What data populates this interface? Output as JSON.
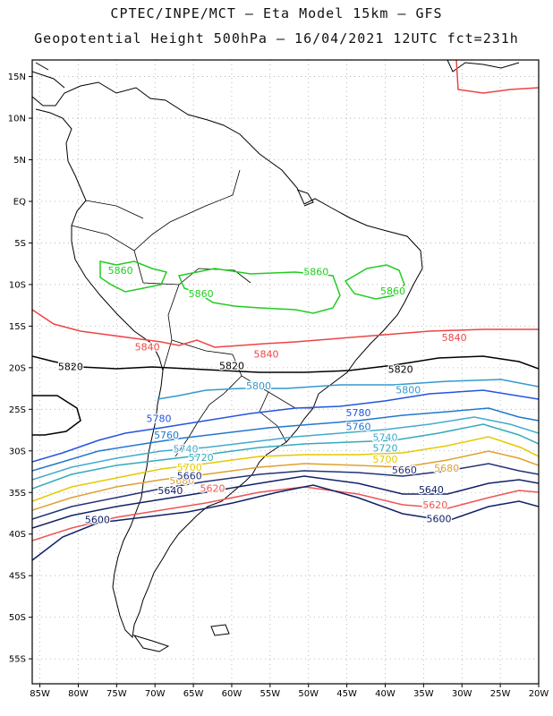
{
  "header": {
    "line1": "CPTEC/INPE/MCT –  Eta Model 15km – GFS",
    "line2": "Geopotential Height 500hPa – 16/04/2021 12UTC fct=231h"
  },
  "map": {
    "lon_range": [
      -86,
      -20
    ],
    "lat_range": [
      -58,
      17
    ],
    "lat_ticks": [
      {
        "v": 15,
        "label": "15N"
      },
      {
        "v": 10,
        "label": "10N"
      },
      {
        "v": 5,
        "label": "5N"
      },
      {
        "v": 0,
        "label": "EQ"
      },
      {
        "v": -5,
        "label": "5S"
      },
      {
        "v": -10,
        "label": "10S"
      },
      {
        "v": -15,
        "label": "15S"
      },
      {
        "v": -20,
        "label": "20S"
      },
      {
        "v": -25,
        "label": "25S"
      },
      {
        "v": -30,
        "label": "30S"
      },
      {
        "v": -35,
        "label": "35S"
      },
      {
        "v": -40,
        "label": "40S"
      },
      {
        "v": -45,
        "label": "45S"
      },
      {
        "v": -50,
        "label": "50S"
      },
      {
        "v": -55,
        "label": "55S"
      }
    ],
    "lon_ticks": [
      {
        "v": -85,
        "label": "85W"
      },
      {
        "v": -80,
        "label": "80W"
      },
      {
        "v": -75,
        "label": "75W"
      },
      {
        "v": -70,
        "label": "70W"
      },
      {
        "v": -65,
        "label": "65W"
      },
      {
        "v": -60,
        "label": "60W"
      },
      {
        "v": -55,
        "label": "55W"
      },
      {
        "v": -50,
        "label": "50W"
      },
      {
        "v": -45,
        "label": "45W"
      },
      {
        "v": -40,
        "label": "40W"
      },
      {
        "v": -35,
        "label": "35W"
      },
      {
        "v": -30,
        "label": "30W"
      },
      {
        "v": -25,
        "label": "25W"
      },
      {
        "v": -20,
        "label": "20W"
      }
    ]
  },
  "contours": [
    {
      "value": "5860",
      "color": "#22cc22",
      "labels": [
        [
          -74.5,
          -8.7
        ],
        [
          -64,
          -11.5
        ],
        [
          -49,
          -8.9
        ],
        [
          -39,
          -11.2
        ]
      ]
    },
    {
      "value": "5840",
      "color": "#ee4444",
      "labels": [
        [
          -71,
          -17.9
        ],
        [
          -55.5,
          -18.8
        ],
        [
          -31,
          -16.8
        ]
      ]
    },
    {
      "value": "5820",
      "color": "#000000",
      "labels": [
        [
          -81,
          -20.3
        ],
        [
          -60,
          -20.2
        ],
        [
          -38,
          -20.6
        ]
      ]
    },
    {
      "value": "5800",
      "color": "#3399cc",
      "labels": [
        [
          -56.5,
          -22.6
        ],
        [
          -37,
          -23.1
        ]
      ]
    },
    {
      "value": "5780",
      "color": "#2255dd",
      "labels": [
        [
          -69.5,
          -26.5
        ],
        [
          -43.5,
          -25.8
        ]
      ]
    },
    {
      "value": "5760",
      "color": "#2277cc",
      "labels": [
        [
          -68.5,
          -28.5
        ],
        [
          -43.5,
          -27.5
        ]
      ]
    },
    {
      "value": "5740",
      "color": "#44aacc",
      "labels": [
        [
          -66,
          -30.2
        ],
        [
          -40,
          -28.8
        ]
      ]
    },
    {
      "value": "5720",
      "color": "#33aabb",
      "labels": [
        [
          -64,
          -31.2
        ],
        [
          -40,
          -30.1
        ]
      ]
    },
    {
      "value": "5700",
      "color": "#e6c800",
      "labels": [
        [
          -65.5,
          -32.4
        ],
        [
          -40,
          -31.4
        ]
      ]
    },
    {
      "value": "5680",
      "color": "#e0a030",
      "labels": [
        [
          -66.5,
          -34
        ],
        [
          -32,
          -32.5
        ]
      ]
    },
    {
      "value": "5660",
      "color": "#223377",
      "labels": [
        [
          -65.5,
          -33.4
        ],
        [
          -37.5,
          -32.7
        ]
      ]
    },
    {
      "value": "5640",
      "color": "#112266",
      "labels": [
        [
          -68,
          -35.2
        ],
        [
          -34,
          -35.1
        ]
      ]
    },
    {
      "value": "5620",
      "color": "#ee5555",
      "labels": [
        [
          -62.5,
          -34.9
        ],
        [
          -33.5,
          -36.9
        ]
      ]
    },
    {
      "value": "5600",
      "color": "#112266",
      "labels": [
        [
          -77.5,
          -38.7
        ],
        [
          -33,
          -38.6
        ]
      ]
    }
  ]
}
